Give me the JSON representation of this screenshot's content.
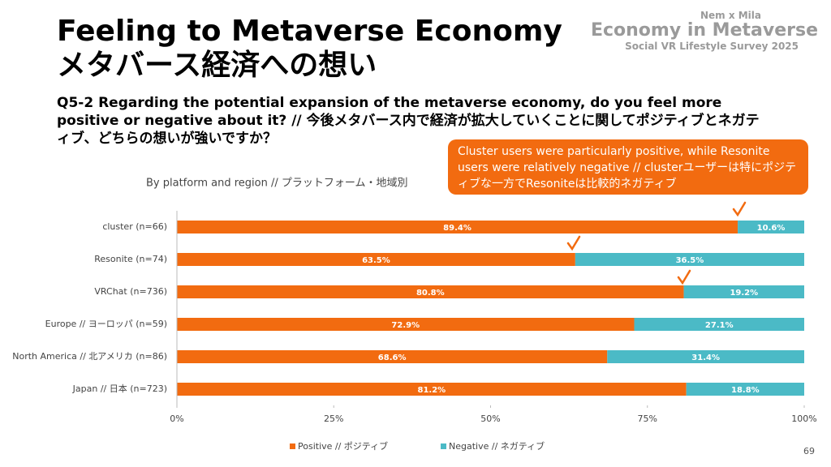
{
  "header": {
    "title_en": "Feeling to Metaverse Economy",
    "title_ja": "メタバース経済への想い",
    "question": "Q5-2 Regarding the potential expansion of the metaverse economy, do you feel more positive or negative about it? // 今後メタバース内で経済が拡大していくことに関してポジティブとネガティブ、どちらの想いが強いですか？"
  },
  "logo": {
    "authors": "Nem x Mila",
    "name": "Economy in Metaverse",
    "survey": "Social VR Lifestyle Survey 2025"
  },
  "callout": "Cluster users were particularly positive, while Resonite users were relatively negative // clusterユーザーは特にポジティブな一方でResoniteは比較的ネガティブ",
  "page_number": "69",
  "chart_data": {
    "type": "stacked-bar-horizontal",
    "title": "By platform and region // プラットフォーム・地域別",
    "categories": [
      "cluster (n=66)",
      "Resonite (n=74)",
      "VRChat (n=736)",
      "Europe // ヨーロッパ (n=59)",
      "North America // 北アメリカ (n=86)",
      "Japan // 日本 (n=723)"
    ],
    "series": [
      {
        "name": "Positive // ポジティブ",
        "color": "#f26b10",
        "values": [
          89.4,
          63.5,
          80.8,
          72.9,
          68.6,
          81.2
        ],
        "value_labels": [
          "89.4%",
          "63.5%",
          "80.8%",
          "72.9%",
          "68.6%",
          "81.2%"
        ]
      },
      {
        "name": "Negative // ネガティブ",
        "color": "#4bbac6",
        "values": [
          10.6,
          36.5,
          19.2,
          27.1,
          31.4,
          18.8
        ],
        "value_labels": [
          "10.6%",
          "36.5%",
          "19.2%",
          "27.1%",
          "31.4%",
          "18.8%"
        ]
      }
    ],
    "xlim": [
      0,
      100
    ],
    "xticks": [
      {
        "value": 0,
        "label": "0%"
      },
      {
        "value": 25,
        "label": "25%"
      },
      {
        "value": 50,
        "label": "50%"
      },
      {
        "value": 75,
        "label": "75%"
      },
      {
        "value": 100,
        "label": "100%"
      }
    ]
  }
}
